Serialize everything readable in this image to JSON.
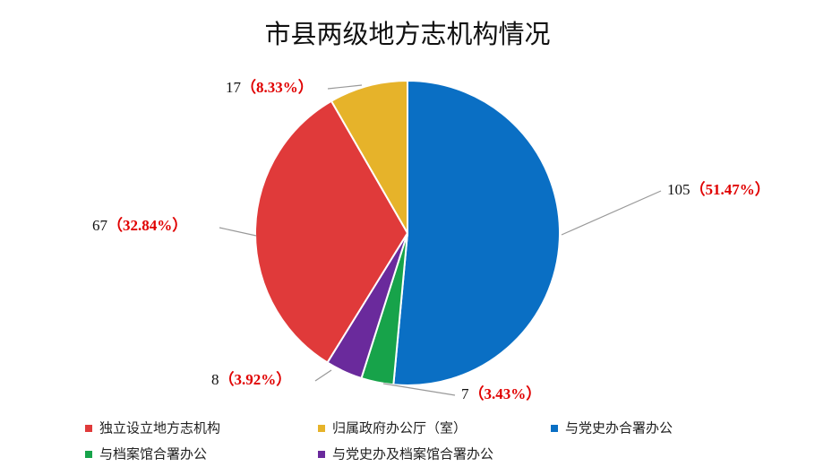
{
  "chart_data": {
    "type": "pie",
    "title": "市县两级地方志机构情况",
    "categories": [
      "与党史办合署办公",
      "与档案馆合署办公",
      "与党史办及档案馆合署办公",
      "独立设立地方志机构",
      "归属政府办公厅（室）"
    ],
    "values": [
      105,
      7,
      8,
      67,
      17
    ],
    "percent_labels": [
      "（51.47%）",
      "（3.43%）",
      "（3.92%）",
      "（32.84%）",
      "（8.33%）"
    ],
    "colors": [
      "#0a6fc4",
      "#17a34a",
      "#6a2a9c",
      "#e03a3a",
      "#e6b32a"
    ]
  }
}
